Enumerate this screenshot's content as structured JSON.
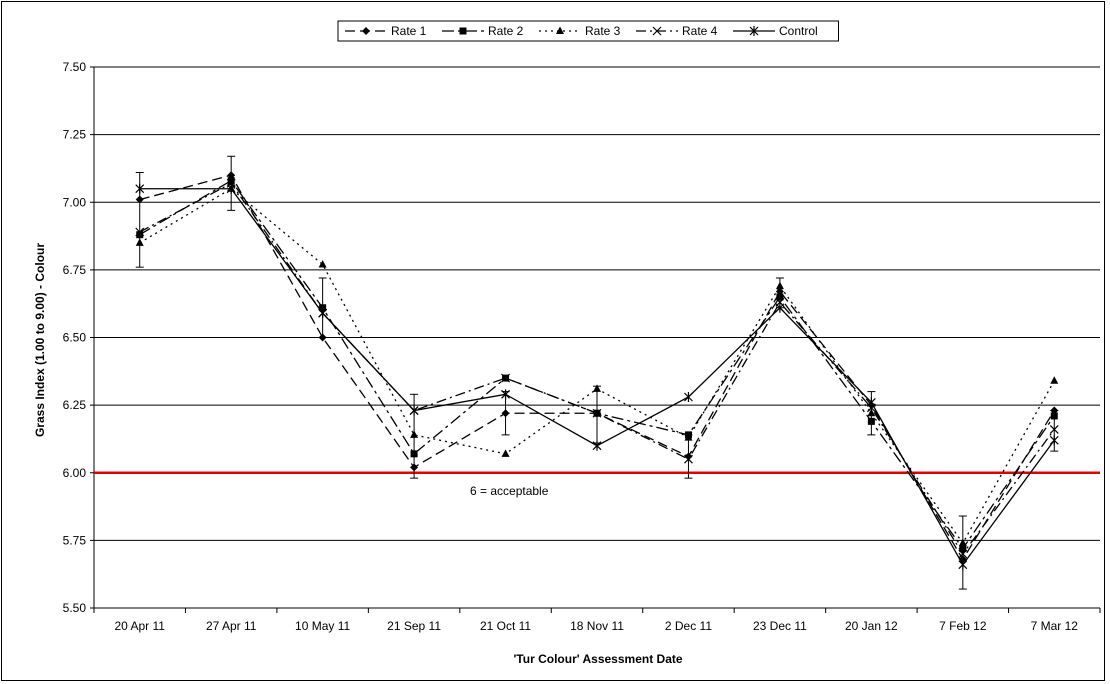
{
  "chart_data": {
    "type": "line",
    "title": "",
    "xlabel": "'Tur Colour' Assessment Date",
    "ylabel": "Grass Index (1.00 to 9.00) - Colour",
    "ylim": [
      5.5,
      7.5
    ],
    "yticks": [
      "5.50",
      "5.75",
      "6.00",
      "6.25",
      "6.50",
      "6.75",
      "7.00",
      "7.25",
      "7.50"
    ],
    "categories": [
      "20 Apr 11",
      "27 Apr 11",
      "10 May 11",
      "21 Sep 11",
      "21 Oct 11",
      "18 Nov 11",
      "2 Dec 11",
      "23 Dec 11",
      "20 Jan 12",
      "7 Feb 12",
      "7 Mar 12"
    ],
    "grid": "horizontal",
    "legend_position": "top-center",
    "series": [
      {
        "name": "Rate 1",
        "marker": "diamond",
        "dash": "10,5",
        "values": [
          7.01,
          7.1,
          6.5,
          6.02,
          6.22,
          6.22,
          6.06,
          6.67,
          6.25,
          5.68,
          6.23
        ]
      },
      {
        "name": "Rate 2",
        "marker": "square",
        "dash": "12,4,3,4",
        "values": [
          6.88,
          7.08,
          6.61,
          6.07,
          6.35,
          6.22,
          6.14,
          6.65,
          6.19,
          5.72,
          6.21
        ]
      },
      {
        "name": "Rate 3",
        "marker": "triangle",
        "dash": "2,4",
        "values": [
          6.85,
          7.05,
          6.77,
          6.14,
          6.07,
          6.31,
          6.13,
          6.69,
          6.22,
          5.74,
          6.34
        ]
      },
      {
        "name": "Rate 4",
        "marker": "x",
        "dash": "10,4,2,4",
        "values": [
          6.89,
          7.07,
          6.59,
          6.23,
          6.35,
          6.22,
          6.05,
          6.63,
          6.24,
          5.7,
          6.16
        ]
      },
      {
        "name": "Control",
        "marker": "star",
        "dash": "",
        "values": [
          7.05,
          7.05,
          6.59,
          6.23,
          6.29,
          6.1,
          6.28,
          6.61,
          6.26,
          5.66,
          6.12
        ]
      }
    ],
    "error_bars": [
      {
        "category": "20 Apr 11",
        "series": "Rate 3",
        "low": 6.76,
        "high": 7.11
      },
      {
        "category": "27 Apr 11",
        "series": "Rate 1",
        "low": 6.97,
        "high": 7.17
      },
      {
        "category": "10 May 11",
        "series": "Rate 2",
        "low": 6.5,
        "high": 6.72
      },
      {
        "category": "21 Sep 11",
        "series": "Rate 4",
        "low": 5.98,
        "high": 6.29
      },
      {
        "category": "21 Oct 11",
        "series": "Rate 1",
        "low": 6.14,
        "high": 6.3
      },
      {
        "category": "18 Nov 11",
        "series": "Rate 2",
        "low": 6.11,
        "high": 6.32
      },
      {
        "category": "2 Dec 11",
        "series": "Rate 1",
        "low": 5.98,
        "high": 6.14
      },
      {
        "category": "23 Dec 11",
        "series": "Rate 3",
        "low": 6.61,
        "high": 6.72
      },
      {
        "category": "20 Jan 12",
        "series": "Rate 2",
        "low": 6.14,
        "high": 6.3
      },
      {
        "category": "7 Feb 12",
        "series": "Rate 1",
        "low": 5.57,
        "high": 5.84
      },
      {
        "category": "7 Mar 12",
        "series": "Rate 4",
        "low": 6.08,
        "high": 6.23
      }
    ],
    "reference_line": {
      "value": 6.0,
      "color": "#e00000",
      "label": "6 = acceptable"
    }
  }
}
